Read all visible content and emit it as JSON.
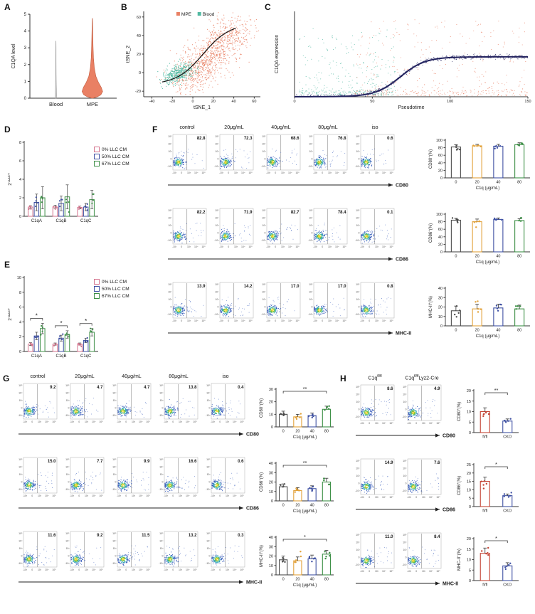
{
  "flow_axis": {
    "x": [
      "-10³",
      "0",
      "10³",
      "10⁴",
      "10⁵"
    ],
    "y": [
      "10⁵",
      "10⁴",
      "10³",
      "0",
      "-10³"
    ]
  },
  "panels": {
    "a": {
      "label": "A",
      "ylabel": "C1QA level",
      "yticks": [
        0,
        1,
        2,
        3,
        4,
        5
      ],
      "categories": [
        "Blood",
        "MPE"
      ],
      "violin_colors": [
        "#d9d9d9",
        "#e98064"
      ]
    },
    "b": {
      "label": "B",
      "xlabel": "tSNE_1",
      "ylabel": "tSNE_2",
      "xticks": [
        -40,
        -20,
        0,
        20,
        40,
        60
      ],
      "yticks": [
        -20,
        0,
        20,
        40,
        60
      ],
      "legend": [
        {
          "label": "MPE",
          "color": "#e98064"
        },
        {
          "label": "Blood",
          "color": "#52b9a2"
        }
      ]
    },
    "c": {
      "label": "C",
      "xlabel": "Pseudotime",
      "ylabel": "C1QA expression",
      "xticks": [
        0,
        50,
        100,
        150
      ],
      "colors": {
        "early": "#52b9a2",
        "late": "#e98064",
        "trend": "#23235f"
      }
    },
    "d": {
      "label": "D",
      "ylabel_parts": [
        {
          "t": "2"
        },
        {
          "t": "-ΔΔCT",
          "sup": true
        }
      ],
      "yticks": [
        0,
        2,
        4,
        6,
        8
      ],
      "categories": [
        "C1qA",
        "C1qB",
        "C1qC"
      ],
      "legend": [
        "0% LLC CM",
        "50% LLC CM",
        "67% LLC CM"
      ],
      "colors": [
        "#d4728c",
        "#3f51a3",
        "#3d8f46"
      ],
      "values": [
        [
          1.0,
          1.5,
          2.0
        ],
        [
          1.0,
          1.4,
          2.1
        ],
        [
          0.95,
          1.0,
          1.8
        ]
      ],
      "errors": [
        [
          0.15,
          0.9,
          1.2
        ],
        [
          0.2,
          0.8,
          1.3
        ],
        [
          0.15,
          0.4,
          1.0
        ]
      ],
      "sig": []
    },
    "e": {
      "label": "E",
      "ylabel_parts": [
        {
          "t": "2"
        },
        {
          "t": "-ΔΔCT",
          "sup": true
        }
      ],
      "yticks": [
        0,
        2,
        4,
        6,
        8,
        10
      ],
      "categories": [
        "C1qA",
        "C1qB",
        "C1qC"
      ],
      "legend": [
        "0% LLC CM",
        "50% LLC CM",
        "67% LLC CM"
      ],
      "colors": [
        "#d4728c",
        "#3f51a3",
        "#3d8f46"
      ],
      "values": [
        [
          1.0,
          2.1,
          3.1
        ],
        [
          1.0,
          1.8,
          2.3
        ],
        [
          1.0,
          1.5,
          2.6
        ]
      ],
      "errors": [
        [
          0.2,
          0.5,
          0.7
        ],
        [
          0.15,
          0.4,
          0.5
        ],
        [
          0.15,
          0.3,
          0.5
        ]
      ],
      "sig": [
        {
          "cat": 0,
          "label": "*"
        },
        {
          "cat": 1,
          "label": "*"
        },
        {
          "cat": 2,
          "label": "*"
        }
      ]
    },
    "f": {
      "label": "F",
      "col_headers": [
        "control",
        "20μg/mL",
        "40μg/mL",
        "80μg/mL",
        "iso"
      ],
      "group_colors": [
        "#4d4d4d",
        "#e2a23b",
        "#3f51a3",
        "#3d8f46"
      ],
      "rows": [
        {
          "marker": "CD80",
          "pcts": [
            "82.8",
            "72.3",
            "68.6",
            "76.8",
            "0.6"
          ],
          "bar": {
            "ylabel_parts": [
              {
                "t": "CD80"
              },
              {
                "t": "+",
                "sup": true
              },
              {
                "t": "(%)"
              }
            ],
            "yticks": [
              0,
              20,
              40,
              60,
              80,
              100
            ],
            "values": [
              82,
              85,
              84,
              88
            ],
            "errors": [
              6,
              4,
              5,
              5
            ],
            "xticklabels": [
              "0",
              "20",
              "40",
              "80"
            ],
            "xlabel": "C1q (μg/mL)",
            "sig": null
          }
        },
        {
          "marker": "CD86",
          "pcts": [
            "82.2",
            "71.9",
            "82.7",
            "78.4",
            "0.1"
          ],
          "bar": {
            "ylabel_parts": [
              {
                "t": "CD86"
              },
              {
                "t": "+",
                "sup": true
              },
              {
                "t": "(%)"
              }
            ],
            "yticks": [
              0,
              20,
              40,
              60,
              80,
              100
            ],
            "values": [
              84,
              80,
              86,
              83
            ],
            "errors": [
              5,
              7,
              4,
              5
            ],
            "xticklabels": [
              "0",
              "20",
              "40",
              "80"
            ],
            "xlabel": "C1q (μg/mL)",
            "sig": null
          }
        },
        {
          "marker": "MHC-II",
          "pcts": [
            "13.9",
            "14.2",
            "17.0",
            "17.0",
            "0.8"
          ],
          "bar": {
            "ylabel_parts": [
              {
                "t": "MHC-II"
              },
              {
                "t": "+",
                "sup": true
              },
              {
                "t": "(%)"
              }
            ],
            "yticks": [
              0,
              10,
              20,
              30,
              40
            ],
            "values": [
              16,
              18,
              19,
              18
            ],
            "errors": [
              5,
              5,
              4,
              4
            ],
            "xticklabels": [
              "0",
              "20",
              "40",
              "80"
            ],
            "xlabel": "C1q (μg/mL)",
            "sig": null
          }
        }
      ]
    },
    "g": {
      "label": "G",
      "col_headers": [
        "control",
        "20μg/mL",
        "40μg/mL",
        "80μg/mL",
        "iso"
      ],
      "group_colors": [
        "#4d4d4d",
        "#e2a23b",
        "#3f51a3",
        "#3d8f46"
      ],
      "rows": [
        {
          "marker": "CD80",
          "pcts": [
            "9.2",
            "4.7",
            "4.7",
            "13.8",
            "0.4"
          ],
          "bar": {
            "ylabel_parts": [
              {
                "t": "CD80"
              },
              {
                "t": "+",
                "sup": true
              },
              {
                "t": "(%)"
              }
            ],
            "yticks": [
              0,
              10,
              20,
              30
            ],
            "values": [
              10,
              8,
              9,
              14
            ],
            "errors": [
              2.5,
              2,
              2,
              2.5
            ],
            "xticklabels": [
              "0",
              "20",
              "40",
              "80"
            ],
            "xlabel": "C1q (μg/mL)",
            "sig": {
              "from": 0,
              "to": 3,
              "label": "**"
            }
          }
        },
        {
          "marker": "CD86",
          "pcts": [
            "15.0",
            "7.7",
            "9.9",
            "16.6",
            "0.6"
          ],
          "bar": {
            "ylabel_parts": [
              {
                "t": "CD86"
              },
              {
                "t": "+",
                "sup": true
              },
              {
                "t": "(%)"
              }
            ],
            "yticks": [
              0,
              10,
              20,
              30,
              40
            ],
            "values": [
              15,
              11,
              13,
              20
            ],
            "errors": [
              3,
              3,
              3,
              4
            ],
            "xticklabels": [
              "0",
              "20",
              "40",
              "80"
            ],
            "xlabel": "C1q (μg/mL)",
            "sig": {
              "from": 0,
              "to": 3,
              "label": "**"
            }
          }
        },
        {
          "marker": "MHC-II",
          "pcts": [
            "11.6",
            "9.2",
            "11.5",
            "13.2",
            "0.3"
          ],
          "bar": {
            "ylabel_parts": [
              {
                "t": "MHC-II"
              },
              {
                "t": "+",
                "sup": true
              },
              {
                "t": "(%)"
              }
            ],
            "yticks": [
              0,
              10,
              20,
              30,
              40
            ],
            "values": [
              16,
              15,
              17,
              22
            ],
            "errors": [
              4,
              4,
              4,
              4
            ],
            "xticklabels": [
              "0",
              "20",
              "40",
              "80"
            ],
            "xlabel": "C1q (μg/mL)",
            "sig": {
              "from": 0,
              "to": 3,
              "label": "*"
            }
          }
        }
      ]
    },
    "h": {
      "label": "H",
      "col_headers": [
        [
          {
            "t": "C1q"
          },
          {
            "t": "fl/fl",
            "sup": true
          }
        ],
        [
          {
            "t": "C1q"
          },
          {
            "t": "fl/fl",
            "sup": true
          },
          {
            "t": "Lyz2-Cre"
          }
        ]
      ],
      "group_colors": [
        "#c44536",
        "#3f51a3"
      ],
      "rows": [
        {
          "marker": "CD80",
          "pcts": [
            "8.6",
            "4.9"
          ],
          "bar": {
            "ylabel_parts": [
              {
                "t": "CD80"
              },
              {
                "t": "+",
                "sup": true
              },
              {
                "t": "(%)"
              }
            ],
            "yticks": [
              0,
              5,
              10,
              15,
              20
            ],
            "values": [
              10,
              5.5
            ],
            "errors": [
              1.8,
              1.0
            ],
            "xticklabels": [
              "fl/fl",
              "CKO"
            ],
            "xlabel": "",
            "sig": {
              "from": 0,
              "to": 1,
              "label": "**"
            }
          }
        },
        {
          "marker": "CD86",
          "pcts": [
            "14.9",
            "7.6"
          ],
          "bar": {
            "ylabel_parts": [
              {
                "t": "CD86"
              },
              {
                "t": "+",
                "sup": true
              },
              {
                "t": "(%)"
              }
            ],
            "yticks": [
              0,
              5,
              10,
              15,
              20,
              25
            ],
            "values": [
              15,
              6.5
            ],
            "errors": [
              2.5,
              1.0
            ],
            "xticklabels": [
              "fl/fl",
              "CKO"
            ],
            "xlabel": "",
            "sig": {
              "from": 0,
              "to": 1,
              "label": "*"
            }
          }
        },
        {
          "marker": "MHC-II",
          "pcts": [
            "11.0",
            "8.4"
          ],
          "bar": {
            "ylabel_parts": [
              {
                "t": "MHC-II"
              },
              {
                "t": "+",
                "sup": true
              },
              {
                "t": "(%)"
              }
            ],
            "yticks": [
              0,
              5,
              10,
              15,
              20
            ],
            "values": [
              13,
              7
            ],
            "errors": [
              2.5,
              1.5
            ],
            "xticklabels": [
              "fl/fl",
              "CKO"
            ],
            "xlabel": "",
            "sig": {
              "from": 0,
              "to": 1,
              "label": "*"
            }
          }
        }
      ]
    }
  }
}
